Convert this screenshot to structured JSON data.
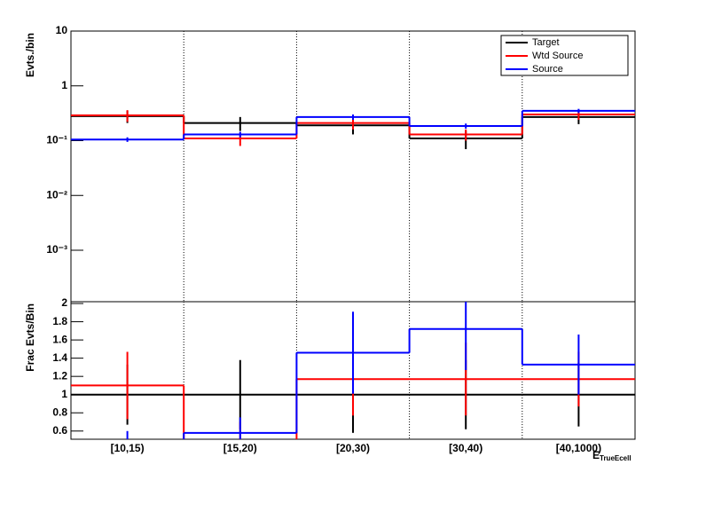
{
  "chart_data": [
    {
      "type": "histogram",
      "ylabel": "Evts./bin",
      "log_y": true,
      "ylim": [
        0.000115,
        10
      ],
      "yticks": [
        {
          "value": 10,
          "label": "10"
        },
        {
          "value": 1,
          "label": "1"
        },
        {
          "value": 0.1,
          "label": "10⁻¹"
        },
        {
          "value": 0.01,
          "label": "10⁻²"
        },
        {
          "value": 0.001,
          "label": "10⁻³"
        }
      ],
      "legend": "top-right",
      "series": [
        {
          "name": "Target",
          "color": "#000000",
          "values": [
            0.28,
            0.21,
            0.19,
            0.11,
            0.27
          ],
          "errors": [
            0.07,
            0.06,
            0.06,
            0.04,
            0.07
          ]
        },
        {
          "name": "Wtd Source",
          "color": "#ff0000",
          "values": [
            0.29,
            0.11,
            0.21,
            0.13,
            0.3
          ],
          "errors": [
            0.07,
            0.03,
            0.05,
            0.03,
            0.06
          ]
        },
        {
          "name": "Source",
          "color": "#0000ff",
          "values": [
            0.105,
            0.13,
            0.27,
            0.185,
            0.35
          ],
          "errors": [
            0.01,
            0.015,
            0.03,
            0.02,
            0.03
          ]
        }
      ]
    },
    {
      "type": "histogram",
      "ylabel": "Frac Evts/Bin",
      "xlabel": "E",
      "xlabel_sub": "TrueEcell",
      "categories": [
        "[10,15)",
        "[15,20)",
        "[20,30)",
        "[30,40)",
        "[40,1000)"
      ],
      "ylim": [
        0.51,
        2.02
      ],
      "yticks": [
        0.6,
        0.8,
        1,
        1.2,
        1.4,
        1.6,
        1.8,
        2
      ],
      "series": [
        {
          "name": "Target",
          "color": "#000000",
          "values": [
            1,
            1,
            1,
            1,
            1
          ],
          "errors": [
            0.33,
            0.38,
            0.42,
            0.38,
            0.35
          ]
        },
        {
          "name": "Wtd Source",
          "color": "#ff0000",
          "values": [
            1.1,
            0.5,
            1.17,
            1.17,
            1.17
          ],
          "errors": [
            0.37,
            0.2,
            0.4,
            0.4,
            0.3
          ]
        },
        {
          "name": "Source",
          "color": "#0000ff",
          "values": [
            0.5,
            0.58,
            1.46,
            1.72,
            1.33
          ],
          "errors": [
            0.1,
            0.17,
            0.45,
            0.45,
            0.33
          ]
        }
      ]
    }
  ]
}
